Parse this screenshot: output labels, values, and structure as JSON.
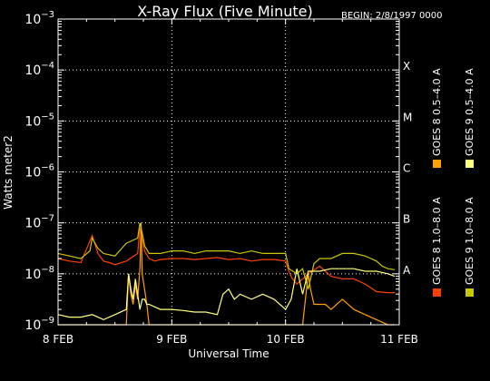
{
  "chart_data": {
    "type": "line",
    "title": "X-Ray Flux (Five Minute)",
    "begin_label": "BEGIN: 2/8/1997 0000",
    "xlabel": "Universal Time",
    "ylabel": "Watts meter2",
    "x_unit": "days since 8 FEB 1997 0000 UT",
    "xlim": [
      0,
      3
    ],
    "x_ticks": [
      {
        "value": 0,
        "label": "8 FEB"
      },
      {
        "value": 1,
        "label": "9 FEB"
      },
      {
        "value": 2,
        "label": "10 FEB"
      },
      {
        "value": 3,
        "label": "11 FEB"
      }
    ],
    "y_scale": "log",
    "ylim_exp": [
      -9,
      -3
    ],
    "y_ticks": [
      {
        "exp": -9,
        "base": "10",
        "sup": "−9"
      },
      {
        "exp": -8,
        "base": "10",
        "sup": "−8"
      },
      {
        "exp": -7,
        "base": "10",
        "sup": "−7"
      },
      {
        "exp": -6,
        "base": "10",
        "sup": "−6"
      },
      {
        "exp": -5,
        "base": "10",
        "sup": "−5"
      },
      {
        "exp": -4,
        "base": "10",
        "sup": "−4"
      },
      {
        "exp": -3,
        "base": "10",
        "sup": "−3"
      }
    ],
    "flare_classes": [
      {
        "exp": -8,
        "label": "A"
      },
      {
        "exp": -7,
        "label": "B"
      },
      {
        "exp": -6,
        "label": "C"
      },
      {
        "exp": -5,
        "label": "M"
      },
      {
        "exp": -4,
        "label": "X"
      }
    ],
    "grid": true,
    "legend_position": "right, vertical",
    "series": [
      {
        "name": "GOES 8 1.0–8.0 A",
        "color": "#ff4000",
        "x": [
          0,
          0.1,
          0.2,
          0.3,
          0.35,
          0.4,
          0.45,
          0.5,
          0.6,
          0.7,
          0.72,
          0.74,
          0.76,
          0.8,
          0.85,
          0.9,
          1.0,
          1.1,
          1.2,
          1.3,
          1.4,
          1.5,
          1.6,
          1.7,
          1.8,
          1.9,
          2.0,
          2.03,
          2.06,
          2.1,
          2.2,
          2.3,
          2.4,
          2.5,
          2.6,
          2.7,
          2.8,
          2.9,
          2.96
        ],
        "log10": [
          -7.7,
          -7.75,
          -7.78,
          -7.25,
          -7.6,
          -7.75,
          -7.78,
          -7.82,
          -7.75,
          -7.6,
          -7.1,
          -7.3,
          -7.55,
          -7.7,
          -7.75,
          -7.72,
          -7.7,
          -7.7,
          -7.72,
          -7.7,
          -7.68,
          -7.72,
          -7.7,
          -7.75,
          -7.72,
          -7.72,
          -7.75,
          -7.95,
          -8.1,
          -8.2,
          -8.0,
          -7.85,
          -8.05,
          -8.1,
          -8.1,
          -8.2,
          -8.35,
          -8.37,
          -8.37
        ]
      },
      {
        "name": "GOES 8 0.5–4.0 A",
        "color": "#ffa000",
        "x": [
          0,
          0.1,
          0.2,
          0.3,
          0.33,
          0.38,
          0.4,
          0.45,
          0.55,
          0.6,
          0.62,
          0.64,
          0.66,
          0.68,
          0.7,
          0.72,
          0.73,
          0.74,
          0.76,
          0.78,
          0.8,
          1.0,
          1.2,
          1.4,
          1.6,
          1.8,
          1.95,
          2.0,
          2.1,
          2.15,
          2.18,
          2.2,
          2.22,
          2.25,
          2.3,
          2.35,
          2.4,
          2.5,
          2.6,
          2.7,
          2.8,
          2.9,
          2.96
        ],
        "log10": [
          -9.0,
          -9.0,
          -9.0,
          -9.0,
          -9.0,
          -9.0,
          -9.0,
          -9.0,
          -9.0,
          -9.0,
          -8.0,
          -8.4,
          -8.6,
          -8.2,
          -8.5,
          -7.9,
          -7.0,
          -8.0,
          -8.3,
          -8.6,
          -9.0,
          -9.0,
          -9.0,
          -9.0,
          -9.0,
          -9.0,
          -9.0,
          -9.0,
          -9.0,
          -9.0,
          -8.4,
          -8.0,
          -8.3,
          -8.6,
          -8.6,
          -8.6,
          -8.7,
          -8.5,
          -8.7,
          -8.8,
          -8.9,
          -9.0,
          -9.0
        ]
      },
      {
        "name": "GOES 9 1.0–8.0 A",
        "color": "#c8c800",
        "x": [
          0,
          0.1,
          0.2,
          0.28,
          0.3,
          0.35,
          0.4,
          0.5,
          0.6,
          0.7,
          0.72,
          0.74,
          0.76,
          0.8,
          0.9,
          1.0,
          1.1,
          1.2,
          1.3,
          1.4,
          1.5,
          1.6,
          1.7,
          1.8,
          1.9,
          2.0,
          2.03,
          2.1,
          2.15,
          2.2,
          2.25,
          2.3,
          2.4,
          2.5,
          2.6,
          2.7,
          2.75,
          2.8,
          2.85,
          2.9,
          2.96
        ],
        "log10": [
          -7.6,
          -7.65,
          -7.7,
          -7.55,
          -7.3,
          -7.5,
          -7.6,
          -7.65,
          -7.4,
          -7.3,
          -7.0,
          -7.2,
          -7.45,
          -7.6,
          -7.6,
          -7.55,
          -7.55,
          -7.6,
          -7.55,
          -7.55,
          -7.55,
          -7.6,
          -7.55,
          -7.6,
          -7.6,
          -7.6,
          -7.9,
          -8.0,
          -7.9,
          -8.3,
          -7.8,
          -7.7,
          -7.7,
          -7.6,
          -7.6,
          -7.65,
          -7.7,
          -7.75,
          -7.85,
          -7.9,
          -7.92
        ]
      },
      {
        "name": "GOES 9 0.5–4.0 A",
        "color": "#ffff80",
        "x": [
          0,
          0.1,
          0.2,
          0.3,
          0.35,
          0.4,
          0.5,
          0.6,
          0.62,
          0.64,
          0.66,
          0.68,
          0.7,
          0.72,
          0.74,
          0.76,
          0.78,
          0.8,
          0.9,
          1.0,
          1.1,
          1.2,
          1.3,
          1.4,
          1.45,
          1.5,
          1.55,
          1.6,
          1.7,
          1.8,
          1.9,
          2.0,
          2.05,
          2.1,
          2.15,
          2.2,
          2.3,
          2.4,
          2.5,
          2.6,
          2.7,
          2.8,
          2.9,
          2.96
        ],
        "log10": [
          -8.8,
          -8.85,
          -8.85,
          -8.8,
          -8.85,
          -8.9,
          -8.8,
          -8.7,
          -8.0,
          -8.3,
          -8.5,
          -8.1,
          -8.4,
          -8.7,
          -8.5,
          -8.5,
          -8.6,
          -8.6,
          -8.7,
          -8.7,
          -8.72,
          -8.75,
          -8.75,
          -8.8,
          -8.4,
          -8.3,
          -8.5,
          -8.4,
          -8.5,
          -8.4,
          -8.5,
          -8.7,
          -8.5,
          -7.9,
          -8.4,
          -7.95,
          -7.95,
          -7.9,
          -7.9,
          -7.9,
          -7.95,
          -7.95,
          -8.0,
          -8.05
        ]
      }
    ]
  }
}
